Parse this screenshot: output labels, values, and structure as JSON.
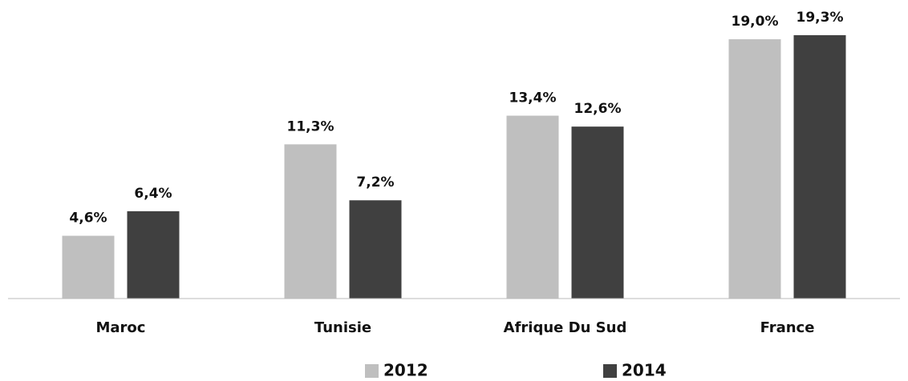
{
  "chart_data": {
    "type": "bar",
    "categories": [
      "Maroc",
      "Tunisie",
      "Afrique Du Sud",
      "France"
    ],
    "series": [
      {
        "name": "2012",
        "color": "#bfbfbf",
        "values": [
          4.6,
          11.3,
          13.4,
          19.0
        ],
        "value_labels": [
          "4,6%",
          "11,3%",
          "13,4%",
          "19,0%"
        ]
      },
      {
        "name": "2014",
        "color": "#404040",
        "values": [
          6.4,
          7.2,
          12.6,
          19.3
        ],
        "value_labels": [
          "6,4%",
          "7,2%",
          "12,6%",
          "19,3%"
        ]
      }
    ],
    "ylim": [
      0,
      20
    ],
    "legend": "bottom"
  }
}
